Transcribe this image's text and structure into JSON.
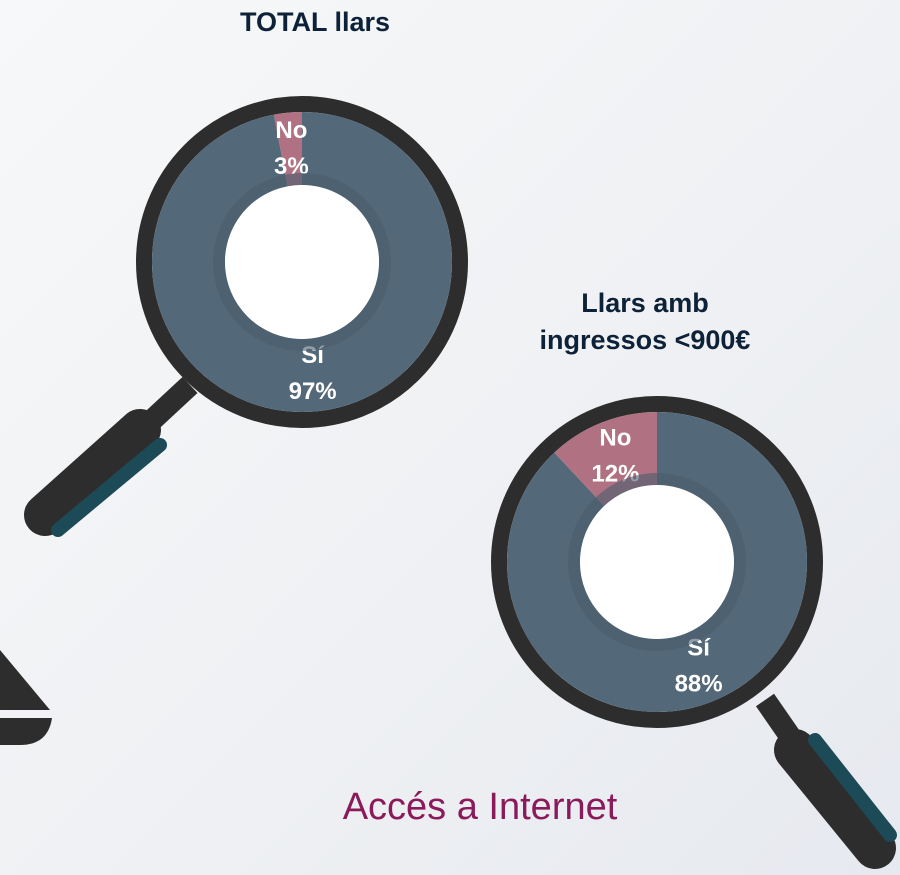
{
  "caption": "Accés a Internet",
  "chart_data": [
    {
      "type": "pie",
      "title": "TOTAL llars",
      "categories": [
        "Sí",
        "No"
      ],
      "values": [
        97,
        3
      ],
      "value_labels": [
        "97%",
        "3%"
      ],
      "colors": [
        "#536878",
        "#b07282"
      ]
    },
    {
      "type": "pie",
      "title": "Llars amb ingressos <900€",
      "categories": [
        "Sí",
        "No"
      ],
      "values": [
        88,
        12
      ],
      "value_labels": [
        "88%",
        "12%"
      ],
      "colors": [
        "#536878",
        "#b07282"
      ]
    }
  ]
}
